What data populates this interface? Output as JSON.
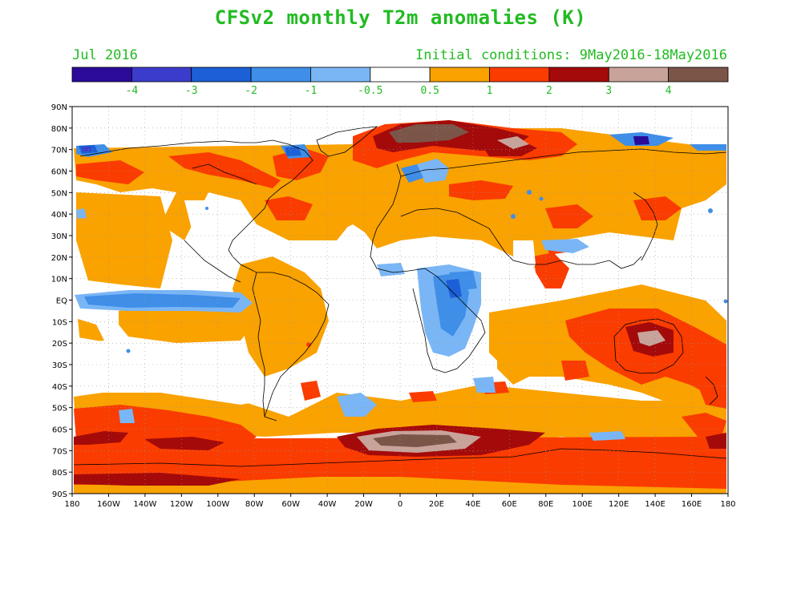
{
  "header": {
    "title": "CFSv2 monthly T2m anomalies (K)",
    "month": "Jul 2016",
    "initial_conditions": "Initial conditions: 9May2016-18May2016"
  },
  "colorbar": {
    "colors": [
      "#2a0b9a",
      "#3c3ccc",
      "#1c5fd6",
      "#3f8ee8",
      "#7ab6f5",
      "#ffffff",
      "#f9a200",
      "#fa3c00",
      "#a40a0a",
      "#c8a39a",
      "#7a5548"
    ],
    "labels": [
      "-4",
      "-3",
      "-2",
      "-1",
      "-0.5",
      "0.5",
      "1",
      "2",
      "3",
      "4"
    ]
  },
  "axes": {
    "lat_labels": [
      "90N",
      "80N",
      "70N",
      "60N",
      "50N",
      "40N",
      "30N",
      "20N",
      "10N",
      "EQ",
      "10S",
      "20S",
      "30S",
      "40S",
      "50S",
      "60S",
      "70S",
      "80S",
      "90S"
    ],
    "lon_labels": [
      "180",
      "160W",
      "140W",
      "120W",
      "100W",
      "80W",
      "60W",
      "40W",
      "20W",
      "0",
      "20E",
      "40E",
      "60E",
      "80E",
      "100E",
      "120E",
      "140E",
      "160E",
      "180"
    ]
  },
  "colors": {
    "text": "#22bb22",
    "coast": "#000000",
    "grid": "#999999"
  }
}
